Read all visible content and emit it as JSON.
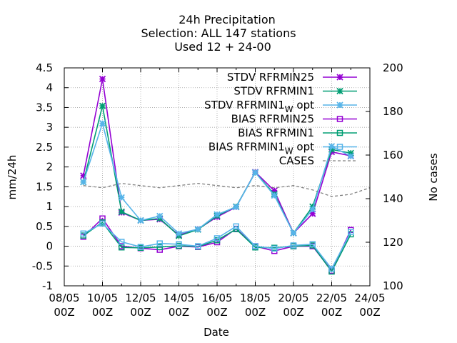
{
  "chart_data": {
    "type": "line",
    "title_lines": [
      "24h Precipitation",
      "Selection: ALL     147 stations",
      "Used  12 + 24-00"
    ],
    "xlabel": "Date",
    "ylabel": "mm/24h",
    "y2label": "No cases",
    "xlim": [
      "08/05 00Z",
      "24/05 00Z"
    ],
    "ylim": [
      -1,
      4.5
    ],
    "y2lim": [
      100,
      200
    ],
    "grid": true,
    "legend_position": "top-right",
    "x_ticks": [
      {
        "top": "08/05",
        "bottom": "00Z"
      },
      {
        "top": "10/05",
        "bottom": "00Z"
      },
      {
        "top": "12/05",
        "bottom": "00Z"
      },
      {
        "top": "14/05",
        "bottom": "00Z"
      },
      {
        "top": "16/05",
        "bottom": "00Z"
      },
      {
        "top": "18/05",
        "bottom": "00Z"
      },
      {
        "top": "20/05",
        "bottom": "00Z"
      },
      {
        "top": "22/05",
        "bottom": "00Z"
      },
      {
        "top": "24/05",
        "bottom": "00Z"
      }
    ],
    "y_ticks": [
      "-1",
      "-0.5",
      "0",
      "0.5",
      "1",
      "1.5",
      "2",
      "2.5",
      "3",
      "3.5",
      "4",
      "4.5"
    ],
    "y2_ticks": [
      "100",
      "120",
      "140",
      "160",
      "180",
      "200"
    ],
    "x_days": [
      9,
      10,
      11,
      12,
      13,
      14,
      15,
      16,
      17,
      18,
      19,
      20,
      21,
      22,
      23
    ],
    "series": [
      {
        "name": "STDV RFRMIN25",
        "color": "#9400d3",
        "marker": "x-star",
        "values": [
          1.78,
          4.22,
          0.85,
          0.65,
          0.68,
          0.28,
          0.43,
          0.74,
          0.99,
          1.87,
          1.4,
          0.33,
          0.82,
          2.38,
          2.28
        ]
      },
      {
        "name": "STDV RFRMIN1",
        "color": "#009e73",
        "marker": "x-star",
        "values": [
          1.62,
          3.54,
          0.87,
          0.65,
          0.7,
          0.26,
          0.42,
          0.77,
          1.0,
          1.86,
          1.31,
          0.33,
          1.0,
          2.44,
          2.35
        ]
      },
      {
        "name": "STDV RFRMIN1 W opt",
        "color": "#56b4e9",
        "marker": "x-star",
        "values": [
          1.62,
          3.1,
          1.23,
          0.65,
          0.76,
          0.32,
          0.43,
          0.8,
          0.99,
          1.86,
          1.28,
          0.33,
          0.93,
          2.52,
          2.27
        ]
      },
      {
        "name": "BIAS RFRMIN25",
        "color": "#9400d3",
        "marker": "square",
        "values": [
          0.24,
          0.7,
          0.0,
          -0.05,
          -0.09,
          0.0,
          -0.02,
          0.1,
          0.44,
          0.0,
          -0.12,
          0.0,
          0.0,
          -0.62,
          0.41
        ]
      },
      {
        "name": "BIAS RFRMIN1",
        "color": "#009e73",
        "marker": "square",
        "values": [
          0.27,
          0.6,
          -0.03,
          -0.04,
          -0.02,
          0.01,
          -0.01,
          0.15,
          0.43,
          -0.03,
          -0.04,
          0.0,
          0.02,
          -0.64,
          0.3
        ]
      },
      {
        "name": "BIAS RFRMIN1 W opt",
        "color": "#56b4e9",
        "marker": "square",
        "values": [
          0.32,
          0.57,
          0.11,
          -0.02,
          0.07,
          0.05,
          0.0,
          0.2,
          0.5,
          0.0,
          -0.06,
          0.02,
          0.05,
          -0.57,
          0.36
        ]
      }
    ],
    "cases": {
      "name": "CASES",
      "color": "#808080",
      "axis": "y2",
      "x_days": [
        9,
        10,
        11,
        12,
        13,
        14,
        15,
        16,
        17,
        18,
        19,
        20,
        21,
        22,
        23,
        24
      ],
      "values": [
        146,
        145,
        147,
        146,
        145,
        146,
        147,
        146,
        145,
        146,
        145,
        146,
        144,
        141,
        142,
        145
      ]
    }
  }
}
